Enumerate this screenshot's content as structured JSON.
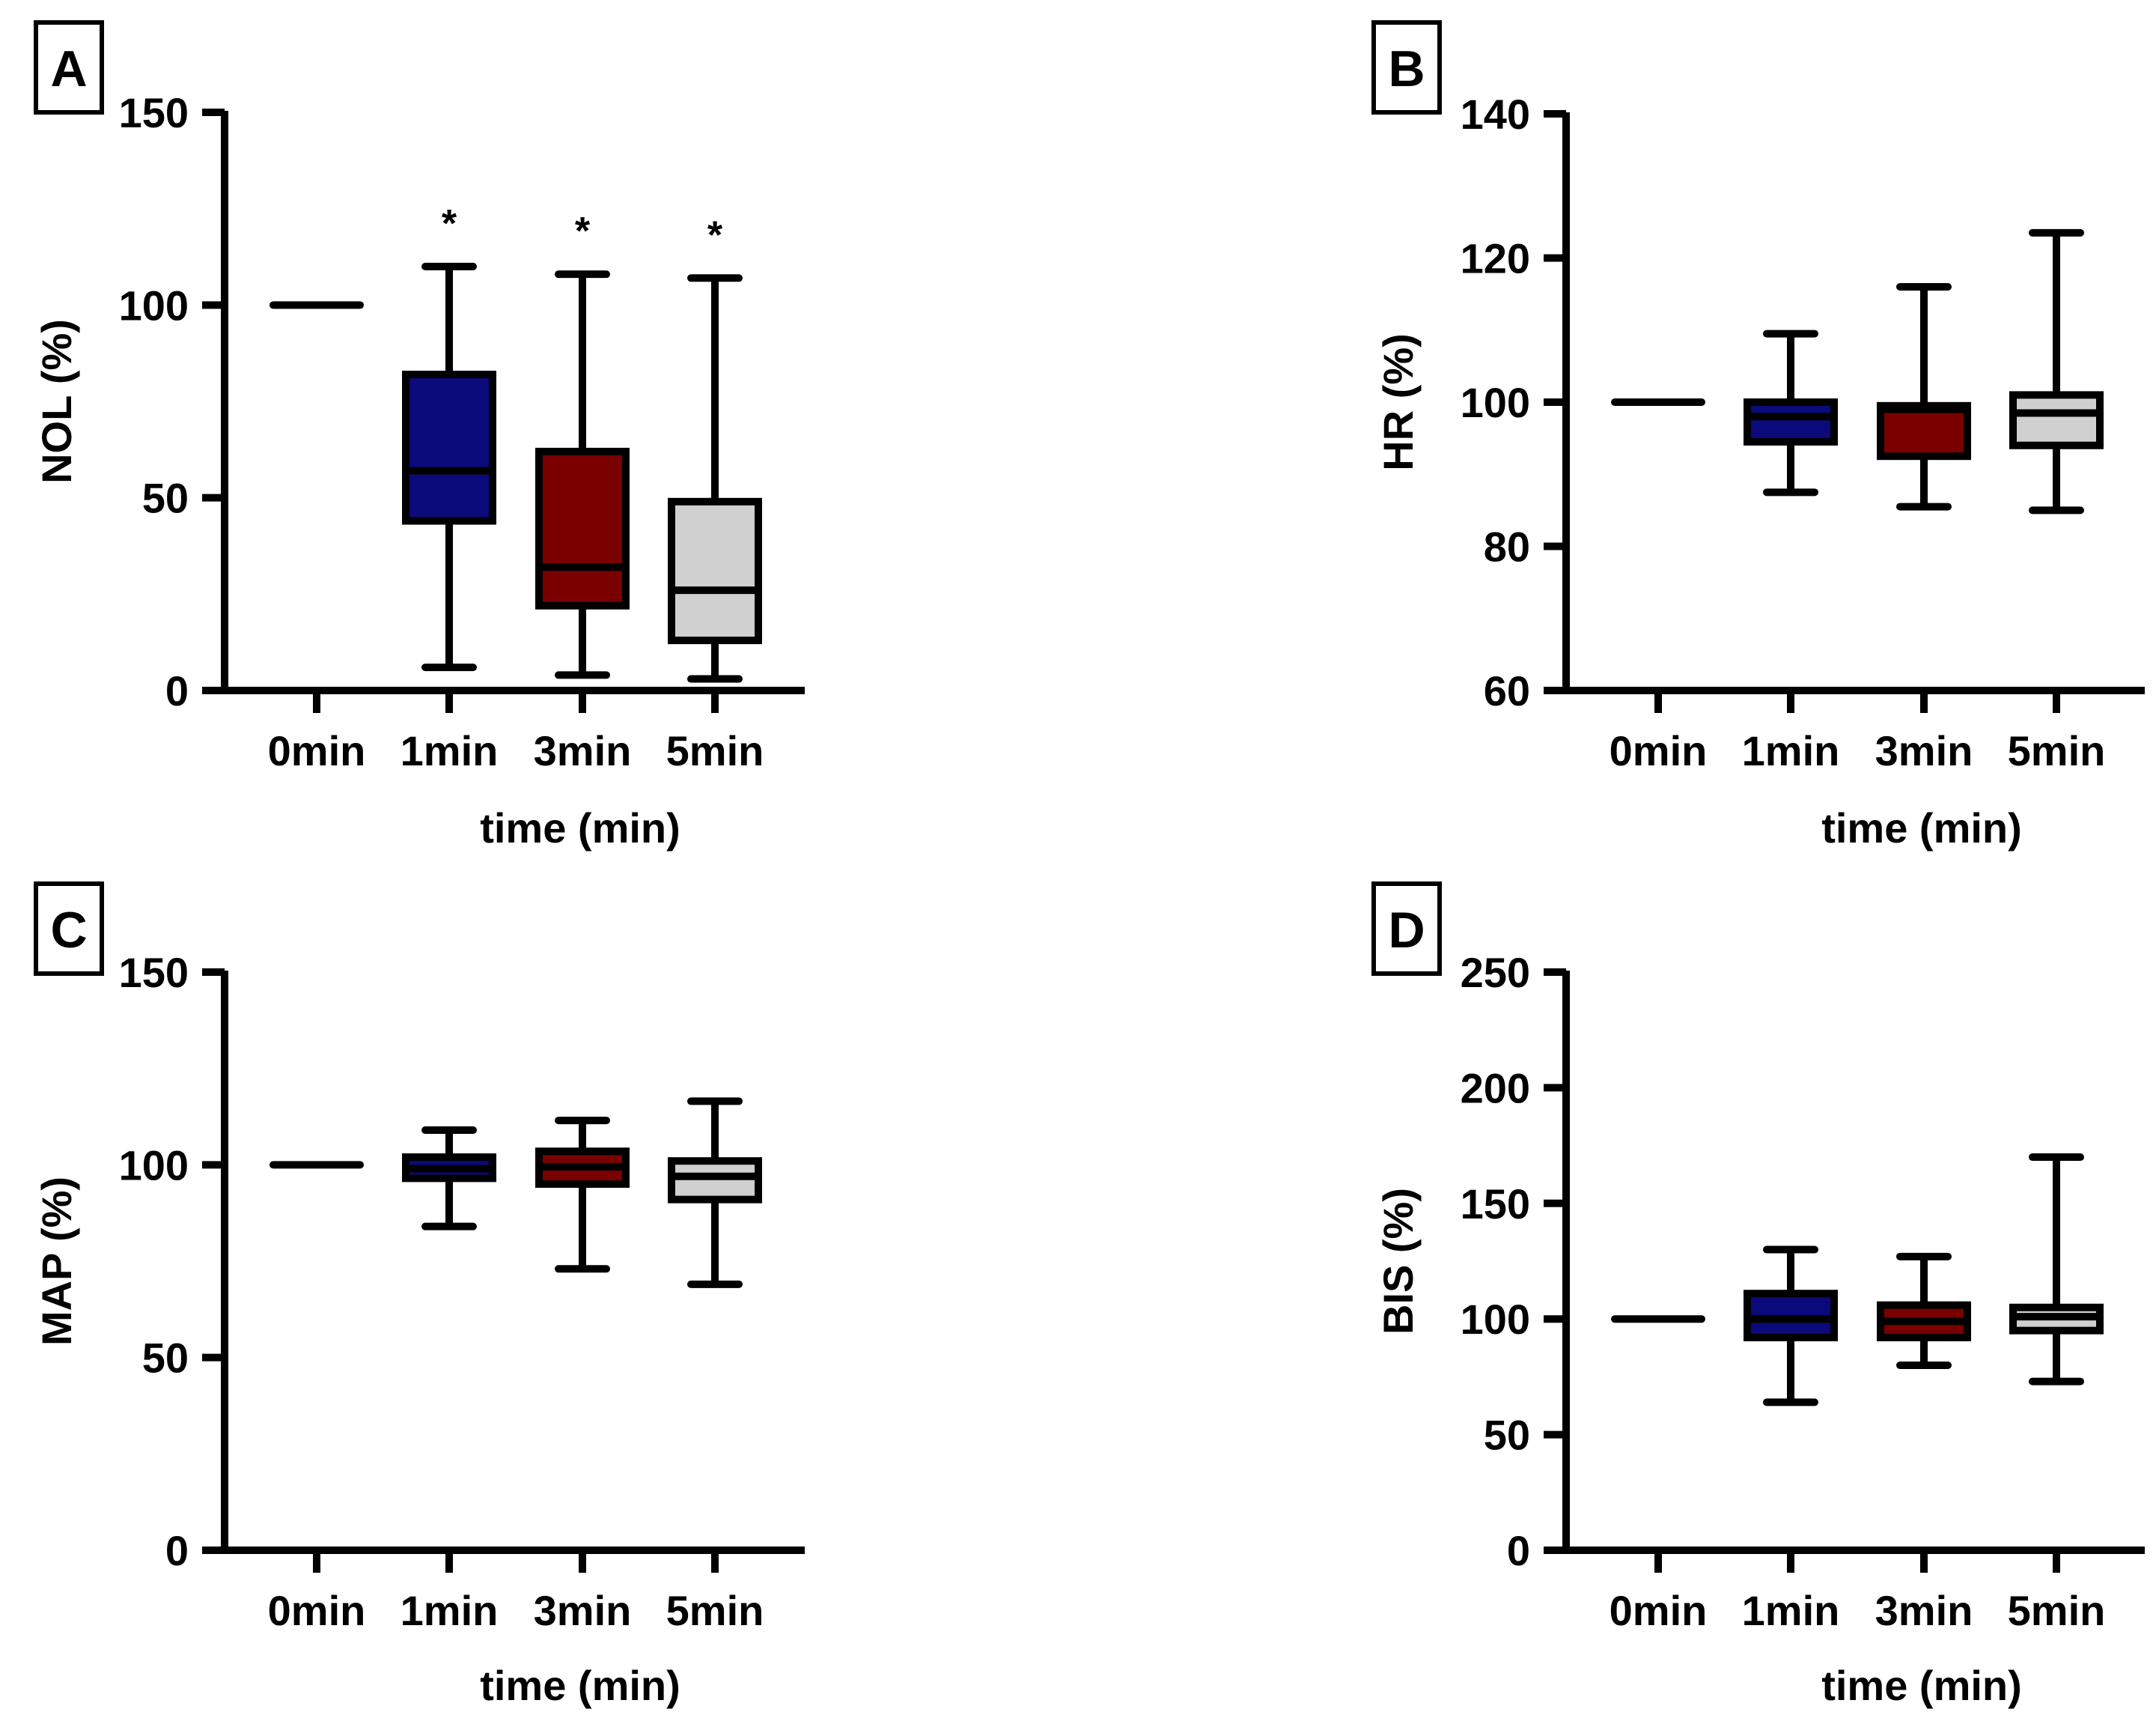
{
  "chart_data": [
    {
      "panel_label": "A",
      "type": "box",
      "xlabel": "time (min)",
      "ylabel": "NOL (%)",
      "ylim": [
        0,
        150
      ],
      "yticks": [
        "0",
        "50",
        "100",
        "150"
      ],
      "categories": [
        "0min",
        "1min",
        "3min",
        "5min"
      ],
      "boxes": [
        {
          "min": 100,
          "q1": 100,
          "median": 100,
          "q3": 100,
          "max": 100,
          "fill": "#000000"
        },
        {
          "min": 6,
          "q1": 44,
          "median": 57,
          "q3": 82,
          "max": 110,
          "fill": "#0a0a7a",
          "annotation": "*"
        },
        {
          "min": 4,
          "q1": 22,
          "median": 32,
          "q3": 62,
          "max": 108,
          "fill": "#7a0000",
          "annotation": "*"
        },
        {
          "min": 3,
          "q1": 13,
          "median": 26,
          "q3": 49,
          "max": 107,
          "fill": "#d0d0d0",
          "annotation": "*"
        }
      ]
    },
    {
      "panel_label": "B",
      "type": "box",
      "xlabel": "time (min)",
      "ylabel": "HR (%)",
      "ylim": [
        60,
        140
      ],
      "yticks": [
        "60",
        "80",
        "100",
        "120",
        "140"
      ],
      "categories": [
        "0min",
        "1min",
        "3min",
        "5min"
      ],
      "boxes": [
        {
          "min": 100,
          "q1": 100,
          "median": 100,
          "q3": 100,
          "max": 100,
          "fill": "#000000"
        },
        {
          "min": 87.5,
          "q1": 94.5,
          "median": 98,
          "q3": 100,
          "max": 109.5,
          "fill": "#0a0a7a"
        },
        {
          "min": 85.5,
          "q1": 92.5,
          "median": 99,
          "q3": 99.5,
          "max": 116,
          "fill": "#7a0000"
        },
        {
          "min": 85,
          "q1": 94,
          "median": 98.5,
          "q3": 101,
          "max": 123.5,
          "fill": "#d0d0d0"
        }
      ]
    },
    {
      "panel_label": "C",
      "type": "box",
      "xlabel": "time (min)",
      "ylabel": "MAP (%)",
      "ylim": [
        0,
        150
      ],
      "yticks": [
        "0",
        "50",
        "100",
        "150"
      ],
      "categories": [
        "0min",
        "1min",
        "3min",
        "5min"
      ],
      "boxes": [
        {
          "min": 100,
          "q1": 100,
          "median": 100,
          "q3": 100,
          "max": 100,
          "fill": "#000000"
        },
        {
          "min": 84,
          "q1": 96.5,
          "median": 99,
          "q3": 102,
          "max": 109,
          "fill": "#0a0a7a"
        },
        {
          "min": 73,
          "q1": 95,
          "median": 99.5,
          "q3": 103.5,
          "max": 111.5,
          "fill": "#7a0000"
        },
        {
          "min": 69,
          "q1": 91,
          "median": 97,
          "q3": 101,
          "max": 116.5,
          "fill": "#d0d0d0"
        }
      ]
    },
    {
      "panel_label": "D",
      "type": "box",
      "xlabel": "time (min)",
      "ylabel": "BIS (%)",
      "ylim": [
        0,
        250
      ],
      "yticks": [
        "0",
        "50",
        "100",
        "150",
        "200",
        "250"
      ],
      "categories": [
        "0min",
        "1min",
        "3min",
        "5min"
      ],
      "boxes": [
        {
          "min": 100,
          "q1": 100,
          "median": 100,
          "q3": 100,
          "max": 100,
          "fill": "#000000"
        },
        {
          "min": 64,
          "q1": 92,
          "median": 100,
          "q3": 111,
          "max": 130,
          "fill": "#0a0a7a"
        },
        {
          "min": 80,
          "q1": 92,
          "median": 99,
          "q3": 106,
          "max": 127,
          "fill": "#7a0000"
        },
        {
          "min": 73,
          "q1": 95,
          "median": 101,
          "q3": 105,
          "max": 170,
          "fill": "#d0d0d0"
        }
      ]
    }
  ]
}
